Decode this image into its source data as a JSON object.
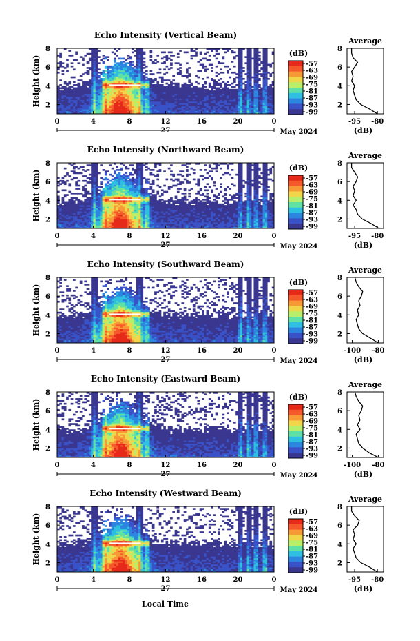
{
  "xlabel_bottom": "Local Time",
  "date_sub_label": "27",
  "date_label": "May 2024",
  "colorbar": {
    "unit": "(dB)",
    "ticks": [
      "-57",
      "-63",
      "-69",
      "-75",
      "-81",
      "-87",
      "-93",
      "-99"
    ],
    "colors": [
      "#e62a1a",
      "#f5582a",
      "#f79a36",
      "#f2d64a",
      "#b9ee6b",
      "#5fe1a6",
      "#2fbfe0",
      "#2c86e0",
      "#3a52c8",
      "#3a3790"
    ]
  },
  "chart_data": [
    {
      "type": "heatmap",
      "title": "Echo Intensity (Vertical Beam)",
      "xlabel": "",
      "ylabel": "Height (km)",
      "xticks": [
        "0",
        "4",
        "8",
        "12",
        "16",
        "20",
        "0"
      ],
      "yticks": [
        "2",
        "4",
        "6",
        "8"
      ],
      "xlim": [
        0,
        24
      ],
      "ylim": [
        1,
        8
      ],
      "zlim": [
        -99,
        -57
      ],
      "profile": {
        "title": "Average",
        "xlabel": "(dB)",
        "xticks": [
          "-95",
          "-80"
        ],
        "xlim": [
          -100,
          -76
        ],
        "yticks": [
          "2",
          "4",
          "6",
          "8"
        ],
        "ylim": [
          1,
          8
        ],
        "height_km": [
          1.0,
          1.5,
          2.0,
          2.5,
          3.0,
          3.5,
          4.0,
          4.5,
          5.0,
          5.5,
          6.0,
          6.5,
          7.0,
          7.5,
          8.0
        ],
        "values_db": [
          -80,
          -85,
          -91,
          -94,
          -95,
          -96,
          -95,
          -97,
          -96,
          -97,
          -95,
          -93,
          -96,
          -97,
          -97
        ]
      }
    },
    {
      "type": "heatmap",
      "title": "Echo Intensity (Northward Beam)",
      "xlabel": "",
      "ylabel": "Height (km)",
      "xticks": [
        "0",
        "4",
        "8",
        "12",
        "16",
        "20",
        "0"
      ],
      "yticks": [
        "2",
        "4",
        "6",
        "8"
      ],
      "xlim": [
        0,
        24
      ],
      "ylim": [
        1,
        8
      ],
      "zlim": [
        -99,
        -57
      ],
      "profile": {
        "title": "Average",
        "xlabel": "(dB)",
        "xticks": [
          "-95",
          "-80"
        ],
        "xlim": [
          -100,
          -76
        ],
        "yticks": [
          "2",
          "4",
          "6",
          "8"
        ],
        "ylim": [
          1,
          8
        ],
        "height_km": [
          1.0,
          1.5,
          2.0,
          2.5,
          3.0,
          3.5,
          4.0,
          4.5,
          5.0,
          5.5,
          6.0,
          6.5,
          7.0,
          7.5,
          8.0
        ],
        "values_db": [
          -79,
          -84,
          -90,
          -93,
          -94,
          -96,
          -94,
          -96,
          -95,
          -96,
          -94,
          -93,
          -95,
          -97,
          -97
        ]
      }
    },
    {
      "type": "heatmap",
      "title": "Echo Intensity (Southward Beam)",
      "xlabel": "",
      "ylabel": "Height (km)",
      "xticks": [
        "0",
        "4",
        "8",
        "12",
        "16",
        "20",
        "0"
      ],
      "yticks": [
        "2",
        "4",
        "6",
        "8"
      ],
      "xlim": [
        0,
        24
      ],
      "ylim": [
        1,
        8
      ],
      "zlim": [
        -99,
        -57
      ],
      "profile": {
        "title": "Average",
        "xlabel": "(dB)",
        "xticks": [
          "-100",
          "-80"
        ],
        "xlim": [
          -104,
          -76
        ],
        "yticks": [
          "2",
          "4",
          "6",
          "8"
        ],
        "ylim": [
          1,
          8
        ],
        "height_km": [
          1.0,
          1.5,
          2.0,
          2.5,
          3.0,
          3.5,
          4.0,
          4.5,
          5.0,
          5.5,
          6.0,
          6.5,
          7.0,
          7.5,
          8.0
        ],
        "values_db": [
          -80,
          -86,
          -92,
          -95,
          -96,
          -97,
          -95,
          -96,
          -94,
          -95,
          -93,
          -92,
          -95,
          -97,
          -98
        ]
      }
    },
    {
      "type": "heatmap",
      "title": "Echo Intensity (Eastward Beam)",
      "xlabel": "",
      "ylabel": "Height (km)",
      "xticks": [
        "0",
        "4",
        "8",
        "12",
        "16",
        "20",
        "0"
      ],
      "yticks": [
        "2",
        "4",
        "6",
        "8"
      ],
      "xlim": [
        0,
        24
      ],
      "ylim": [
        1,
        8
      ],
      "zlim": [
        -99,
        -57
      ],
      "profile": {
        "title": "Average",
        "xlabel": "(dB)",
        "xticks": [
          "-100",
          "-80"
        ],
        "xlim": [
          -104,
          -76
        ],
        "yticks": [
          "2",
          "4",
          "6",
          "8"
        ],
        "ylim": [
          1,
          8
        ],
        "height_km": [
          1.0,
          1.5,
          2.0,
          2.5,
          3.0,
          3.5,
          4.0,
          4.5,
          5.0,
          5.5,
          6.0,
          6.5,
          7.0,
          7.5,
          8.0
        ],
        "values_db": [
          -80,
          -87,
          -92,
          -95,
          -96,
          -97,
          -94,
          -96,
          -94,
          -95,
          -93,
          -92,
          -95,
          -97,
          -98
        ]
      }
    },
    {
      "type": "heatmap",
      "title": "Echo Intensity (Westward Beam)",
      "xlabel": "Local Time",
      "ylabel": "Height (km)",
      "xticks": [
        "0",
        "4",
        "8",
        "12",
        "16",
        "20",
        "0"
      ],
      "yticks": [
        "2",
        "4",
        "6",
        "8"
      ],
      "xlim": [
        0,
        24
      ],
      "ylim": [
        1,
        8
      ],
      "zlim": [
        -99,
        -57
      ],
      "profile": {
        "title": "Average",
        "xlabel": "(dB)",
        "xticks": [
          "-95",
          "-80"
        ],
        "xlim": [
          -100,
          -76
        ],
        "yticks": [
          "2",
          "4",
          "6",
          "8"
        ],
        "ylim": [
          1,
          8
        ],
        "height_km": [
          1.0,
          1.5,
          2.0,
          2.5,
          3.0,
          3.5,
          4.0,
          4.5,
          5.0,
          5.5,
          6.0,
          6.5,
          7.0,
          7.5,
          8.0
        ],
        "values_db": [
          -80,
          -85,
          -91,
          -94,
          -95,
          -96,
          -94,
          -96,
          -95,
          -96,
          -93,
          -92,
          -95,
          -97,
          -97
        ]
      }
    }
  ]
}
